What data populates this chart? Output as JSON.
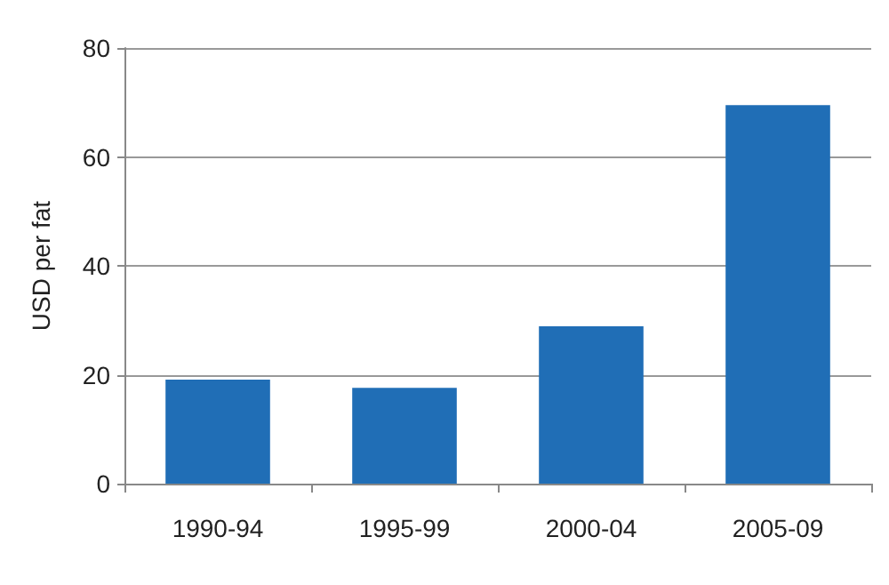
{
  "chart_data": {
    "type": "bar",
    "ylabel": "USD per fat",
    "categories": [
      "1990-94",
      "1995-99",
      "2000-04",
      "2005-09"
    ],
    "values": [
      19.1,
      17.6,
      28.9,
      69.5
    ],
    "color": "#206eb6",
    "ylim": [
      0,
      80
    ],
    "yticks": [
      0,
      20,
      40,
      60,
      80
    ],
    "grid": "y"
  }
}
